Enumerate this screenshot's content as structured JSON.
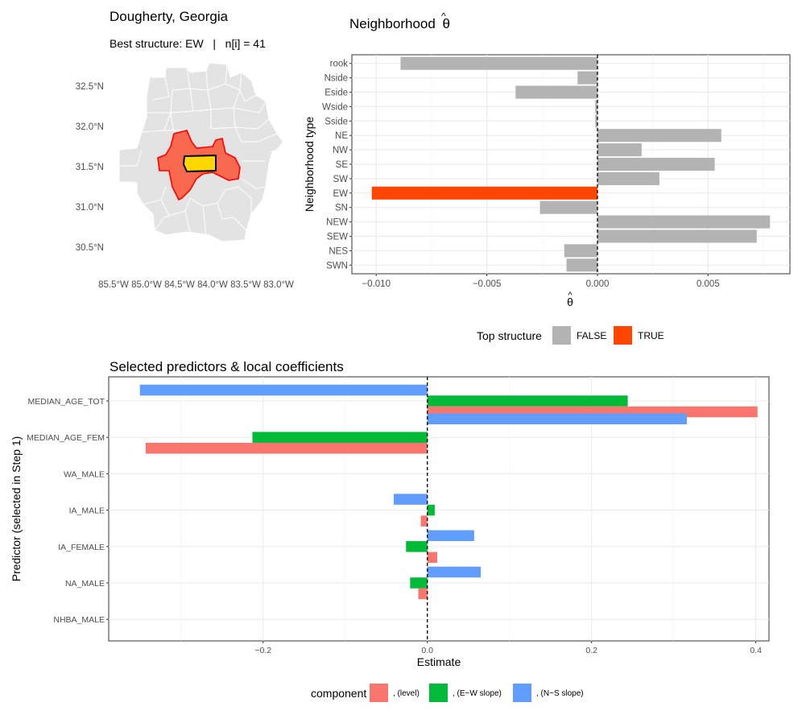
{
  "map": {
    "title": "Dougherty, Georgia",
    "subtitle": "Best structure: EW   |   n[i] = 41",
    "lat_labels": [
      "32.5°N",
      "32.0°N",
      "31.5°N",
      "31.0°N",
      "30.5°N"
    ],
    "lon_labels": [
      "85.5°W",
      "85.0°W",
      "84.5°W",
      "84.0°W",
      "83.5°W",
      "83.0°W"
    ],
    "colors": {
      "county_fill": "#e3e3e3",
      "county_border": "#ffffff",
      "neighbor_fill": "#f8694f",
      "neighbor_border": "#ff0000",
      "focal_fill": "#ffd700",
      "focal_border": "#000000"
    }
  },
  "chart_data": [
    {
      "type": "bar",
      "orientation": "horizontal",
      "title": "Neighborhood θ̂",
      "title_text": "Neighborhood",
      "title_symbol": "θ",
      "title_hat": "^",
      "xlabel_symbol": "θ",
      "xlabel_hat": "^",
      "ylabel": "Neighborhood type",
      "categories": [
        "rook",
        "Nside",
        "Eside",
        "Wside",
        "Sside",
        "NE",
        "NW",
        "SE",
        "SW",
        "EW",
        "SN",
        "NEW",
        "SEW",
        "NES",
        "SWN"
      ],
      "values": [
        -0.0089,
        -0.0009,
        -0.0037,
        -0.0001,
        -0.0001,
        0.0056,
        0.002,
        0.0053,
        0.0028,
        -0.0102,
        -0.0026,
        0.0078,
        0.0072,
        -0.0015,
        -0.0014
      ],
      "top_structure": [
        false,
        false,
        false,
        false,
        false,
        false,
        false,
        false,
        false,
        true,
        false,
        false,
        false,
        false,
        false
      ],
      "xlim": [
        -0.0111,
        0.0087
      ],
      "xticks": [
        -0.01,
        -0.005,
        0,
        0.005
      ],
      "xtick_labels": [
        "−0.010",
        "−0.005",
        "0.000",
        "0.005"
      ],
      "reference_line": 0,
      "grid": true,
      "legend": {
        "title": "Top structure",
        "position": "bottom",
        "items": [
          {
            "label": "FALSE",
            "color": "#b3b3b3"
          },
          {
            "label": "TRUE",
            "color": "#ff4500"
          }
        ]
      }
    },
    {
      "type": "bar",
      "orientation": "horizontal",
      "title": "Selected predictors & local coefficients",
      "xlabel": "Estimate",
      "ylabel": "Predictor (selected in Step 1)",
      "categories": [
        "MEDIAN_AGE_TOT",
        "MEDIAN_AGE_FEM",
        "WA_MALE",
        "IA_MALE",
        "IA_FEMALE",
        "NA_MALE",
        "NHBA_MALE"
      ],
      "series": [
        {
          "name": ", (level)",
          "color": "#f8766d",
          "values": [
            0.402,
            -0.343,
            0,
            -0.008,
            0.012,
            -0.011,
            0
          ]
        },
        {
          "name": ", (E−W slope)",
          "color": "#00ba38",
          "values": [
            0.244,
            -0.213,
            0,
            0.009,
            -0.026,
            -0.021,
            0
          ]
        },
        {
          "name": ", (N−S slope)",
          "color": "#619cff",
          "values": [
            -0.35,
            0,
            0,
            -0.041,
            0.057,
            0.065,
            0
          ],
          "offsets": [
            0,
            1,
            0,
            0,
            0,
            0,
            0
          ],
          "offset_values": [
            0,
            0.316,
            0,
            0,
            0,
            0,
            0
          ]
        }
      ],
      "xlim": [
        -0.388,
        0.416
      ],
      "xticks": [
        -0.2,
        0,
        0.2,
        0.4
      ],
      "xtick_labels": [
        "−0.2",
        "0.0",
        "0.2",
        "0.4"
      ],
      "reference_line": 0,
      "grid": true,
      "legend": {
        "title": "component",
        "position": "bottom",
        "items": [
          {
            "label": ", (level)",
            "color": "#f8766d"
          },
          {
            "label": ", (E−W slope)",
            "color": "#00ba38"
          },
          {
            "label": ", (N−S slope)",
            "color": "#619cff"
          }
        ]
      }
    }
  ]
}
